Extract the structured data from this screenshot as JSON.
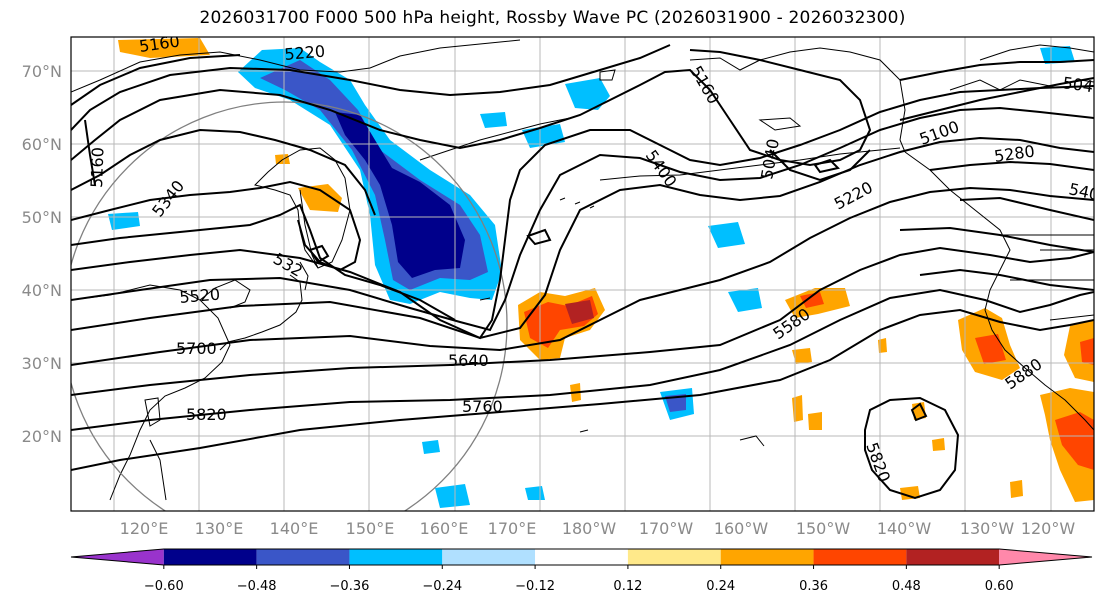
{
  "title": "2026031700 F000 500 hPa height, Rossby Wave PC (2026031900 - 2026032300)",
  "lat_ticks": [
    "70°N",
    "60°N",
    "50°N",
    "40°N",
    "30°N",
    "20°N"
  ],
  "lon_ticks": [
    "120°E",
    "130°E",
    "140°E",
    "150°E",
    "160°E",
    "170°E",
    "180°W",
    "170°W",
    "160°W",
    "150°W",
    "140°W",
    "130°W",
    "120°W"
  ],
  "contour_labels": [
    "5160",
    "5220",
    "5160",
    "5340",
    "5520",
    "5700",
    "5820",
    "5640",
    "5760",
    "5400",
    "5160",
    "5040",
    "5100",
    "5280",
    "5220",
    "5580",
    "5880",
    "5820",
    "540",
    "504",
    "532"
  ],
  "colorbar": {
    "colors": [
      "#9933cc",
      "#00008b",
      "#3a56c8",
      "#00bfff",
      "#b0e0ff",
      "#ffffff",
      "#ffe98a",
      "#ffa500",
      "#ff4500",
      "#b22222",
      "#ff88aa"
    ],
    "tick_labels": [
      "−0.60",
      "−0.48",
      "−0.36",
      "−0.24",
      "−0.12",
      "0.12",
      "0.24",
      "0.36",
      "0.48",
      "0.60"
    ]
  }
}
